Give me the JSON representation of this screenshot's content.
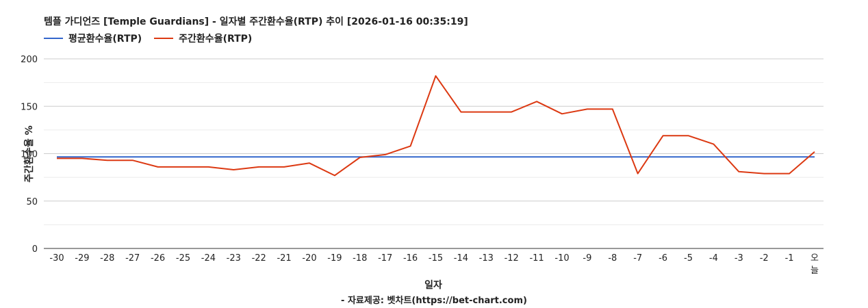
{
  "chart_data": {
    "type": "line",
    "title": "템플 가디언즈 [Temple Guardians] - 일자별 주간환수율(RTP) 추이 [2026-01-16 00:35:19]",
    "xlabel": "일자",
    "ylabel": "주간환수율 %",
    "categories": [
      "-30",
      "-29",
      "-28",
      "-27",
      "-26",
      "-25",
      "-24",
      "-23",
      "-22",
      "-21",
      "-20",
      "-19",
      "-18",
      "-17",
      "-16",
      "-15",
      "-14",
      "-13",
      "-12",
      "-11",
      "-10",
      "-9",
      "-8",
      "-7",
      "-6",
      "-5",
      "-4",
      "-3",
      "-2",
      "-1",
      "오늘"
    ],
    "ylim": [
      0,
      200
    ],
    "yticks": [
      0,
      50,
      100,
      150,
      200
    ],
    "grid": true,
    "legend_position": "top-left",
    "series": [
      {
        "name": "평균환수율(RTP)",
        "color": "#3366cc",
        "values": [
          96.5,
          96.5,
          96.5,
          96.5,
          96.5,
          96.5,
          96.5,
          96.5,
          96.5,
          96.5,
          96.5,
          96.5,
          96.5,
          96.5,
          96.5,
          96.5,
          96.5,
          96.5,
          96.5,
          96.5,
          96.5,
          96.5,
          96.5,
          96.5,
          96.5,
          96.5,
          96.5,
          96.5,
          96.5,
          96.5,
          96.5
        ]
      },
      {
        "name": "주간환수율(RTP)",
        "color": "#dc3912",
        "values": [
          95,
          95,
          93,
          93,
          86,
          86,
          86,
          83,
          86,
          86,
          90,
          77,
          96,
          99,
          108,
          182,
          144,
          144,
          144,
          155,
          142,
          147,
          147,
          79,
          119,
          119,
          110,
          81,
          79,
          79,
          102
        ]
      }
    ]
  },
  "footer": "- 자료제공: 벳차트(https://bet-chart.com)"
}
